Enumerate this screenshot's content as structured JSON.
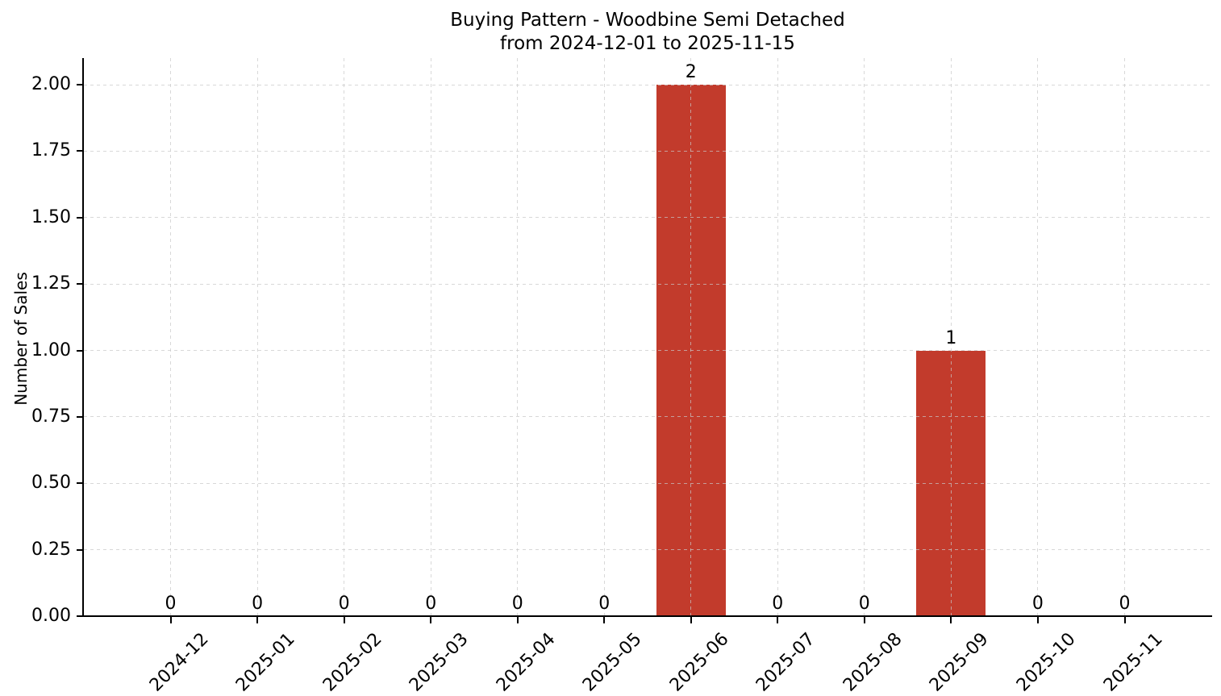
{
  "chart_data": {
    "type": "bar",
    "title": "Buying Pattern - Woodbine Semi Detached",
    "subtitle": "from 2024-12-01 to 2025-11-15",
    "categories": [
      "2024-12",
      "2025-01",
      "2025-02",
      "2025-03",
      "2025-04",
      "2025-05",
      "2025-06",
      "2025-07",
      "2025-08",
      "2025-09",
      "2025-10",
      "2025-11"
    ],
    "values": [
      0,
      0,
      0,
      0,
      0,
      0,
      2,
      0,
      0,
      1,
      0,
      0
    ],
    "bar_value_labels": [
      "0",
      "0",
      "0",
      "0",
      "0",
      "0",
      "2",
      "0",
      "0",
      "1",
      "0",
      "0"
    ],
    "xlabel": "",
    "ylabel": "Number of Sales",
    "ylim": [
      0,
      2.1
    ],
    "yticks": [
      0.0,
      0.25,
      0.5,
      0.75,
      1.0,
      1.25,
      1.5,
      1.75,
      2.0
    ],
    "ytick_labels": [
      "0.00",
      "0.25",
      "0.50",
      "0.75",
      "1.00",
      "1.25",
      "1.50",
      "1.75",
      "2.00"
    ],
    "bar_color": "#c23b2c",
    "axis_color": "#000000",
    "text_color": "#000000",
    "background_color": "#ffffff",
    "grid": {
      "visible": true,
      "line_style": "dashed",
      "color": "#c8c8c8"
    },
    "legend_position": "none"
  }
}
